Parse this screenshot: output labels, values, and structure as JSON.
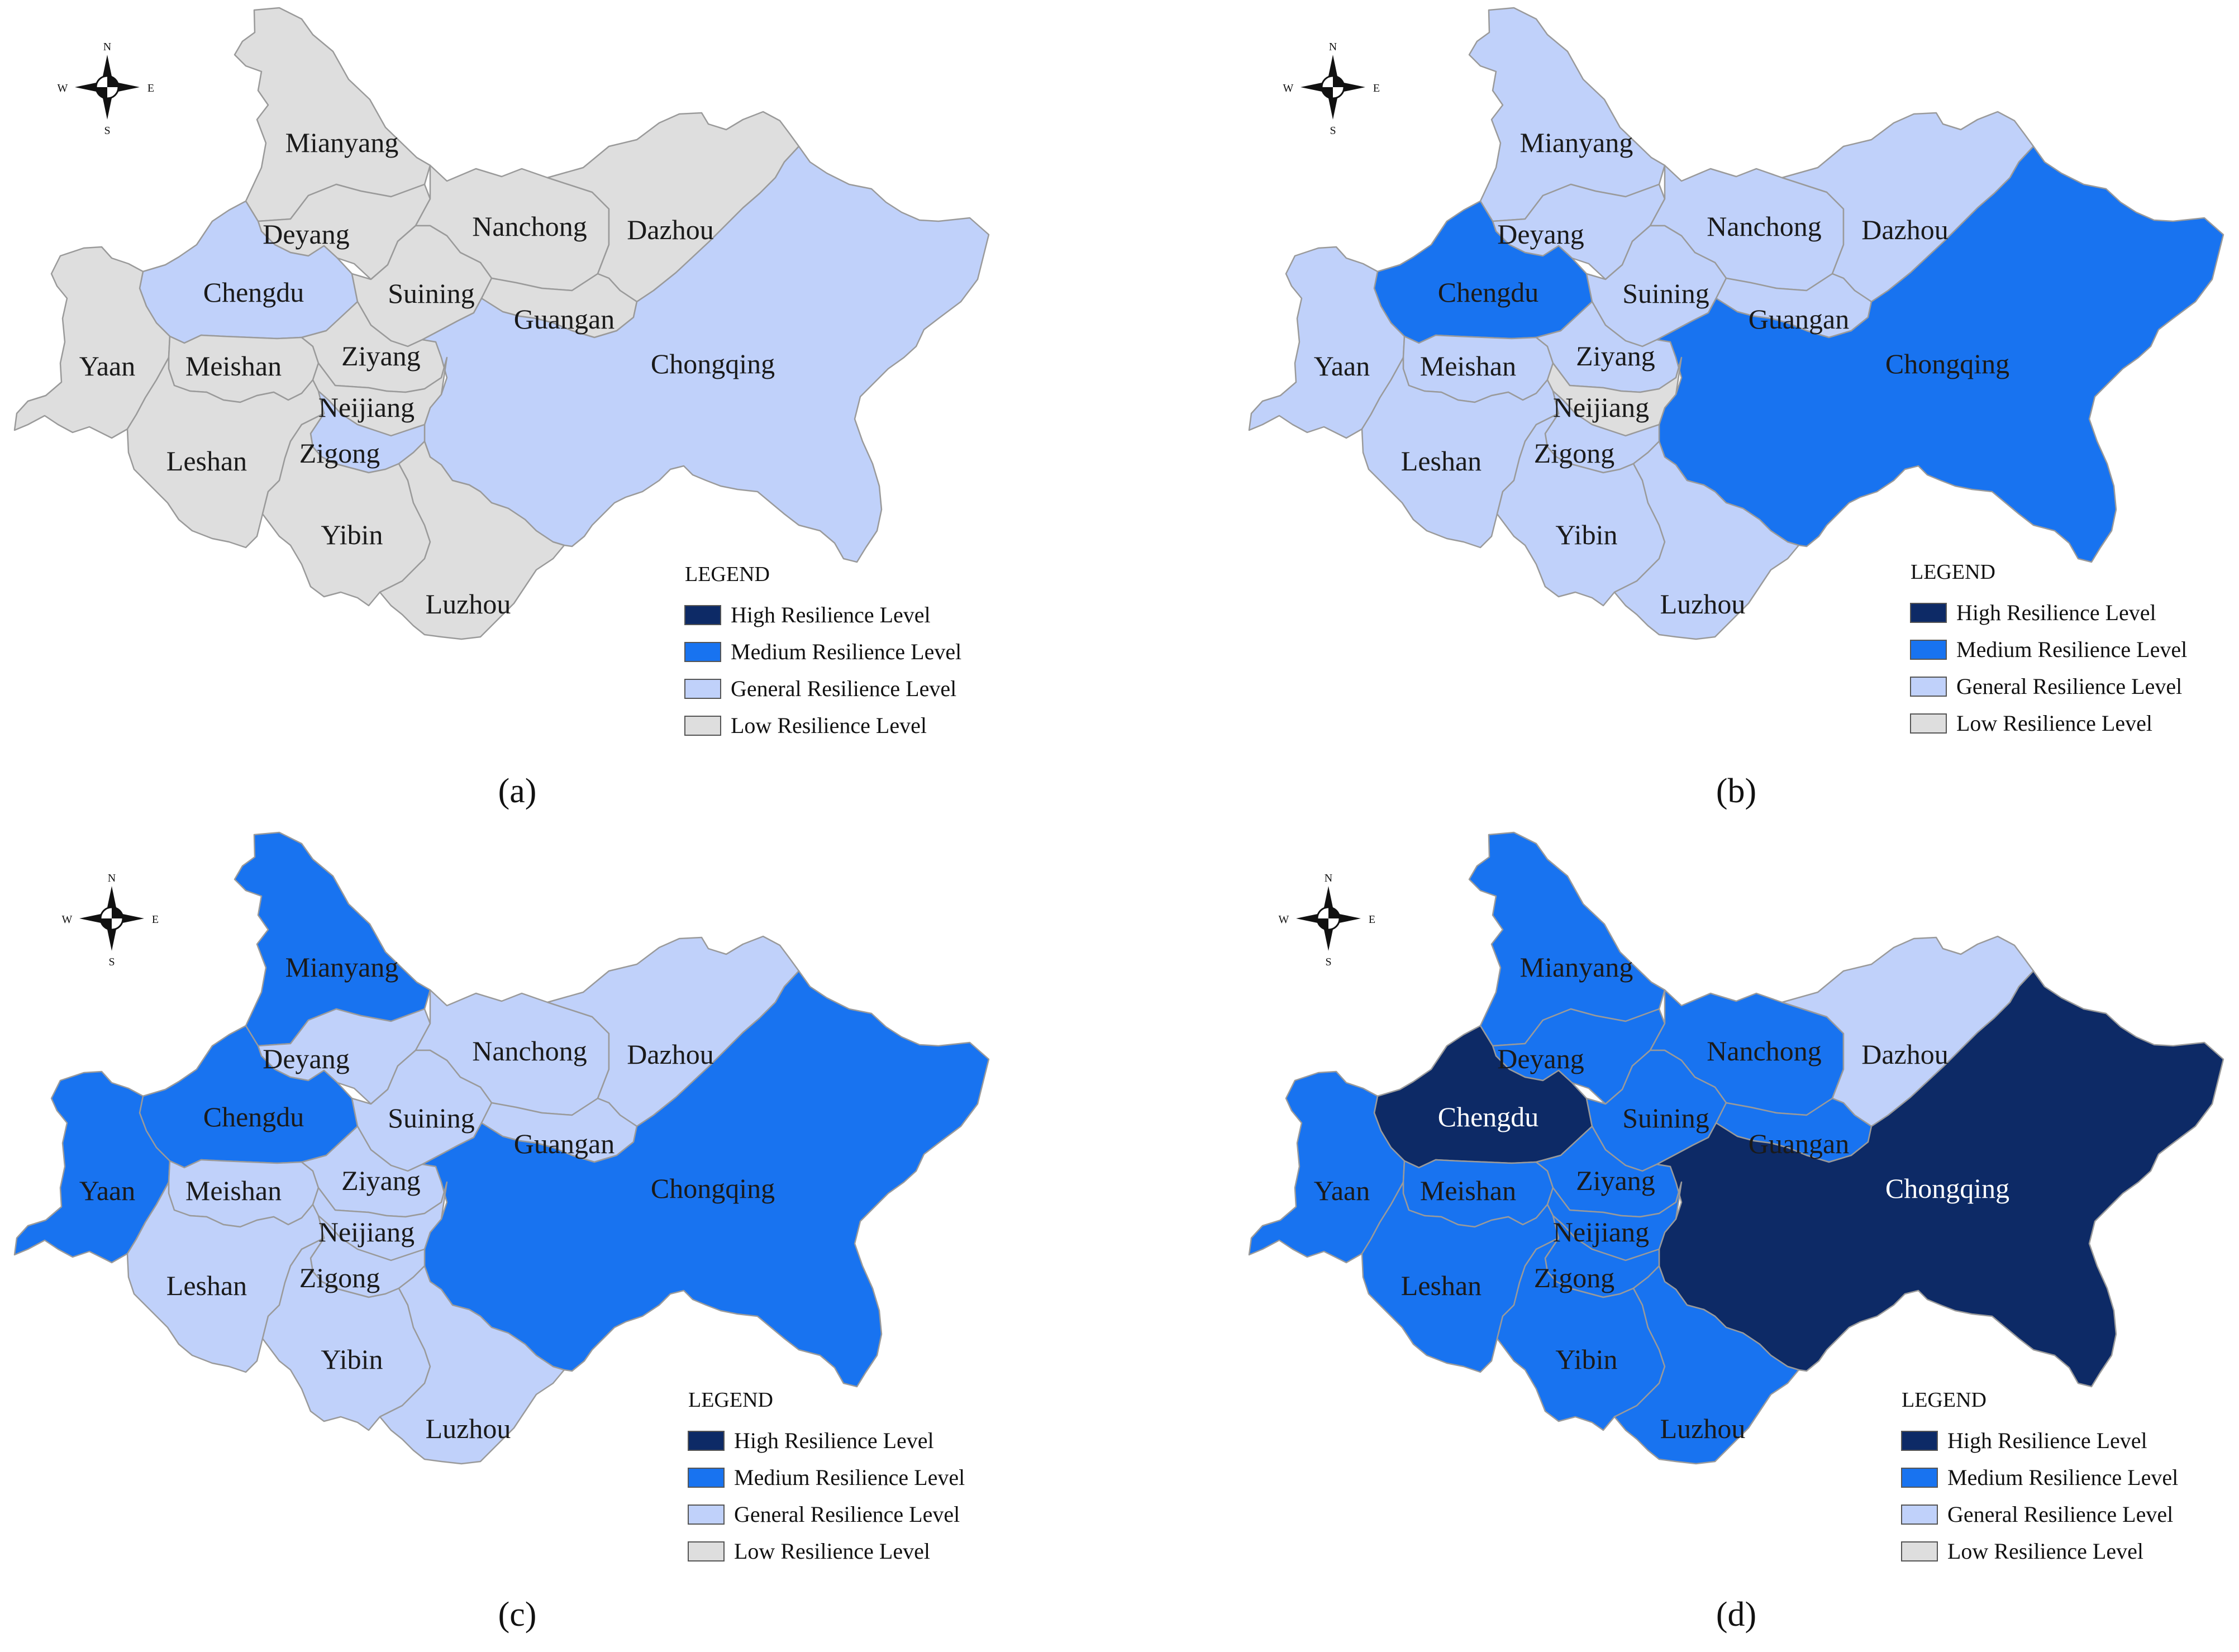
{
  "colors": {
    "high": "#0d2a66",
    "medium": "#1873f0",
    "general": "#c0d1fa",
    "low": "#dedede",
    "border": "#9a9a9a",
    "text_dark": "#1a1a1a",
    "text_light": "#ffffff"
  },
  "compass": {
    "n": "N",
    "s": "S",
    "e": "E",
    "w": "W"
  },
  "legend": {
    "title": "LEGEND",
    "items": [
      {
        "key": "high",
        "label": "High Resilience Level"
      },
      {
        "key": "medium",
        "label": "Medium Resilience Level"
      },
      {
        "key": "general",
        "label": "General Resilience Level"
      },
      {
        "key": "low",
        "label": "Low Resilience Level"
      }
    ]
  },
  "cities": [
    "Mianyang",
    "Deyang",
    "Nanchong",
    "Dazhou",
    "Chengdu",
    "Suining",
    "Guangan",
    "Yaan",
    "Meishan",
    "Ziyang",
    "Chongqing",
    "Neijiang",
    "Leshan",
    "Zigong",
    "Yibin",
    "Luzhou"
  ],
  "panels": [
    {
      "label": "(a)",
      "levels": {
        "Mianyang": "low",
        "Deyang": "low",
        "Nanchong": "low",
        "Dazhou": "low",
        "Chengdu": "general",
        "Suining": "low",
        "Guangan": "low",
        "Yaan": "low",
        "Meishan": "low",
        "Ziyang": "low",
        "Chongqing": "general",
        "Neijiang": "low",
        "Leshan": "low",
        "Zigong": "general",
        "Yibin": "low",
        "Luzhou": "low"
      }
    },
    {
      "label": "(b)",
      "levels": {
        "Mianyang": "general",
        "Deyang": "general",
        "Nanchong": "general",
        "Dazhou": "general",
        "Chengdu": "medium",
        "Suining": "general",
        "Guangan": "general",
        "Yaan": "general",
        "Meishan": "general",
        "Ziyang": "general",
        "Chongqing": "medium",
        "Neijiang": "low",
        "Leshan": "general",
        "Zigong": "general",
        "Yibin": "general",
        "Luzhou": "general"
      }
    },
    {
      "label": "(c)",
      "levels": {
        "Mianyang": "medium",
        "Deyang": "general",
        "Nanchong": "general",
        "Dazhou": "general",
        "Chengdu": "medium",
        "Suining": "general",
        "Guangan": "general",
        "Yaan": "medium",
        "Meishan": "general",
        "Ziyang": "general",
        "Chongqing": "medium",
        "Neijiang": "general",
        "Leshan": "general",
        "Zigong": "general",
        "Yibin": "general",
        "Luzhou": "general"
      }
    },
    {
      "label": "(d)",
      "levels": {
        "Mianyang": "medium",
        "Deyang": "medium",
        "Nanchong": "medium",
        "Dazhou": "general",
        "Chengdu": "high",
        "Suining": "medium",
        "Guangan": "medium",
        "Yaan": "medium",
        "Meishan": "medium",
        "Ziyang": "medium",
        "Chongqing": "high",
        "Neijiang": "medium",
        "Leshan": "medium",
        "Zigong": "medium",
        "Yibin": "medium",
        "Luzhou": "medium"
      }
    }
  ]
}
